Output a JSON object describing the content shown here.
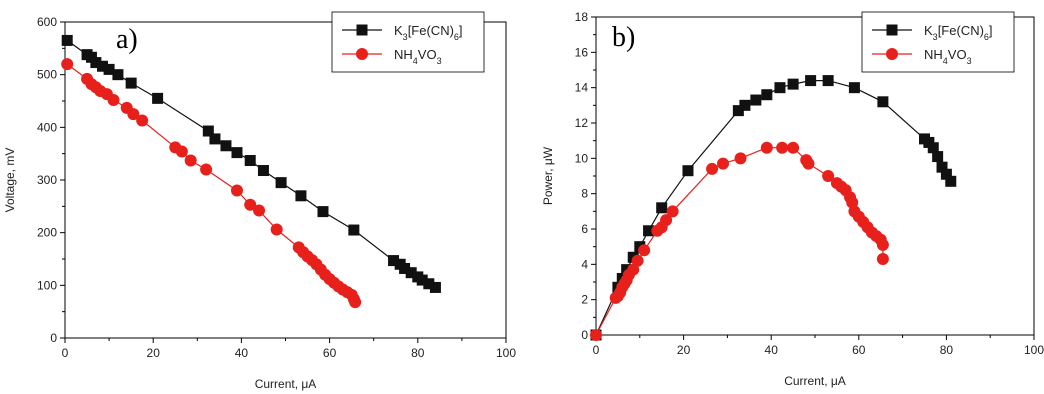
{
  "chart_data": [
    {
      "type": "line",
      "panel_label": "a)",
      "xlabel": "Current, μA",
      "ylabel": "Voltage, mV",
      "xlim": [
        0,
        100
      ],
      "ylim": [
        0,
        600
      ],
      "xticks": [
        0,
        20,
        40,
        60,
        80,
        100
      ],
      "yticks": [
        0,
        100,
        200,
        300,
        400,
        500,
        600
      ],
      "legend_position": "top-right",
      "series": [
        {
          "name": "K3[Fe(CN)6]",
          "color": "#111111",
          "marker": "square",
          "x": [
            0.5,
            5,
            6,
            7,
            8.5,
            10,
            12,
            15,
            21,
            32.5,
            34,
            36.5,
            39,
            42,
            45,
            49,
            53.5,
            58.5,
            65.5,
            74.5,
            76,
            77,
            78.5,
            80,
            81,
            82.5,
            84
          ],
          "y": [
            565,
            538,
            533,
            523,
            516,
            510,
            500,
            484,
            455,
            393,
            378,
            365,
            352,
            337,
            318,
            295,
            270,
            240,
            205,
            147,
            140,
            132,
            124,
            116,
            110,
            103,
            96
          ]
        },
        {
          "name": "NH4VO3",
          "color": "#e8201c",
          "marker": "circle",
          "x": [
            0.5,
            5,
            6,
            7,
            8,
            9.5,
            11,
            14,
            15.5,
            17.5,
            25,
            26.5,
            28.5,
            32,
            39,
            42,
            44,
            48,
            53,
            54,
            55,
            56,
            57,
            58,
            59,
            60,
            61,
            62,
            63,
            64,
            65,
            65.5,
            65.8
          ],
          "y": [
            520,
            492,
            482,
            476,
            469,
            463,
            452,
            437,
            425,
            413,
            362,
            354,
            337,
            320,
            280,
            253,
            242,
            206,
            172,
            163,
            155,
            148,
            140,
            130,
            120,
            112,
            105,
            98,
            92,
            87,
            82,
            74,
            68
          ]
        }
      ]
    },
    {
      "type": "line",
      "panel_label": "b)",
      "xlabel": "Current, μA",
      "ylabel": "Power, μW",
      "xlim": [
        0,
        100
      ],
      "ylim": [
        0,
        18
      ],
      "xticks": [
        0,
        20,
        40,
        60,
        80,
        100
      ],
      "yticks": [
        0,
        2,
        4,
        6,
        8,
        10,
        12,
        14,
        16,
        18
      ],
      "legend_position": "top-right",
      "series": [
        {
          "name": "K3[Fe(CN)6]",
          "color": "#111111",
          "marker": "square",
          "x": [
            0,
            5,
            6,
            7,
            8.5,
            10,
            12,
            15,
            21,
            32.5,
            34,
            36.5,
            39,
            42,
            45,
            49,
            53,
            59,
            65.5,
            75,
            76,
            77,
            78,
            79,
            80,
            81
          ],
          "y": [
            0,
            2.7,
            3.2,
            3.7,
            4.4,
            5.0,
            5.9,
            7.2,
            9.3,
            12.7,
            13.0,
            13.3,
            13.6,
            14.0,
            14.2,
            14.4,
            14.4,
            14.0,
            13.2,
            11.1,
            10.9,
            10.6,
            10.1,
            9.5,
            9.1,
            8.7
          ]
        },
        {
          "name": "NH4VO3",
          "color": "#e8201c",
          "marker": "circle",
          "x": [
            0,
            4.5,
            5,
            5.5,
            6,
            6.5,
            7,
            7.5,
            8.5,
            9.5,
            11,
            14,
            15,
            16,
            17.5,
            26.5,
            29,
            33,
            39,
            42.5,
            45,
            48,
            48.5,
            53,
            55,
            56,
            57,
            58,
            58.5,
            59,
            60,
            61,
            62,
            63,
            64,
            65,
            65.5,
            65.5
          ],
          "y": [
            0,
            2.1,
            2.2,
            2.4,
            2.7,
            2.9,
            3.1,
            3.4,
            3.7,
            4.2,
            4.8,
            5.9,
            6.1,
            6.5,
            7.0,
            9.4,
            9.7,
            10.0,
            10.6,
            10.6,
            10.6,
            9.9,
            9.7,
            9.0,
            8.6,
            8.4,
            8.2,
            7.8,
            7.5,
            7.0,
            6.7,
            6.4,
            6.1,
            5.8,
            5.6,
            5.4,
            5.1,
            4.3
          ]
        }
      ]
    }
  ]
}
